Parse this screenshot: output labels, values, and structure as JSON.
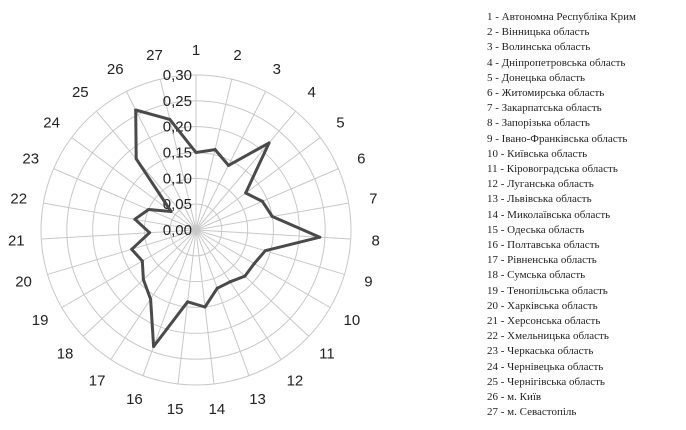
{
  "chart_data": {
    "type": "radar",
    "categories": [
      "1",
      "2",
      "3",
      "4",
      "5",
      "6",
      "7",
      "8",
      "9",
      "10",
      "11",
      "12",
      "13",
      "14",
      "15",
      "16",
      "17",
      "18",
      "19",
      "20",
      "21",
      "22",
      "23",
      "24",
      "25",
      "26",
      "27"
    ],
    "values": [
      0.15,
      0.16,
      0.14,
      0.22,
      0.12,
      0.14,
      0.15,
      0.24,
      0.14,
      0.13,
      0.13,
      0.12,
      0.12,
      0.15,
      0.14,
      0.24,
      0.16,
      0.14,
      0.12,
      0.13,
      0.09,
      0.12,
      0.1,
      0.06,
      0.18,
      0.26,
      0.22
    ],
    "r_ticks": [
      "0,00",
      "0,05",
      "0,10",
      "0,15",
      "0,20",
      "0,25",
      "0,30"
    ],
    "r_range": [
      0,
      0.3
    ],
    "grid": true,
    "legend_position": "right",
    "title": "",
    "series_color": "#4a4a4a",
    "grid_color": "#c8c8c8"
  },
  "legend": {
    "items": [
      "1 - Автономна Республіка Крим",
      "2 - Вінницька область",
      "3 - Волинська область",
      "4 - Дніпропетровська область",
      "5 - Донецька область",
      "6 - Житомирська область",
      "7 - Закарпатська область",
      "8 - Запорізька область",
      "9 - Івано-Франківська область",
      "10 - Київська область",
      "11 - Кіровоградська область",
      "12 - Луганська область",
      "13 - Львівська область",
      "14 - Миколаївська область",
      "15 - Одеська область",
      "16 - Полтавська область",
      "17 - Рівненська область",
      "18 - Сумська область",
      "19 - Тенопільська область",
      "20 - Харківська область",
      "21 - Херсонська область",
      "22 - Хмельницька область",
      "23 - Черкаська область",
      "24 - Чернівецька область",
      "25 - Чернігівська область",
      "26 - м. Київ",
      "27 - м. Севастопіль"
    ]
  }
}
